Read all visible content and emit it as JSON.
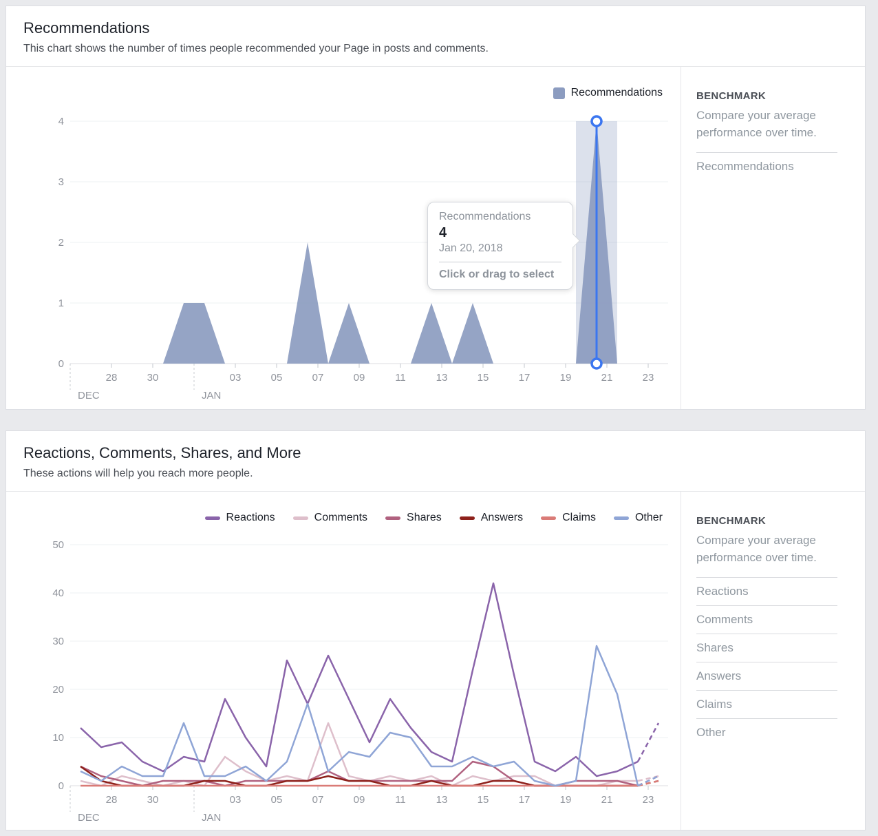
{
  "card1": {
    "title": "Recommendations",
    "subtitle": "This chart shows the number of times people recommended your Page in posts and comments.",
    "legend": [
      {
        "label": "Recommendations",
        "color": "#8c9cc0"
      }
    ],
    "benchmark": {
      "heading": "BENCHMARK",
      "description": "Compare your average performance over time.",
      "items": [
        "Recommendations"
      ]
    },
    "tooltip": {
      "series": "Recommendations",
      "value": "4",
      "date": "Jan 20, 2018",
      "hint": "Click or drag to select"
    },
    "chart_data": {
      "type": "area",
      "series_name": "Recommendations",
      "color": "#8c9cc0",
      "dates": [
        "Dec 26",
        "Dec 27",
        "Dec 28",
        "Dec 29",
        "Dec 30",
        "Dec 31",
        "Jan 1",
        "Jan 2",
        "Jan 3",
        "Jan 4",
        "Jan 5",
        "Jan 6",
        "Jan 7",
        "Jan 8",
        "Jan 9",
        "Jan 10",
        "Jan 11",
        "Jan 12",
        "Jan 13",
        "Jan 14",
        "Jan 15",
        "Jan 16",
        "Jan 17",
        "Jan 18",
        "Jan 19",
        "Jan 20",
        "Jan 21",
        "Jan 22",
        "Jan 23"
      ],
      "values": [
        0,
        0,
        0,
        0,
        0,
        1,
        1,
        0,
        0,
        0,
        0,
        2,
        0,
        1,
        0,
        0,
        0,
        1,
        0,
        1,
        0,
        0,
        0,
        0,
        0,
        4,
        0,
        0,
        0
      ],
      "ylim": [
        0,
        4
      ],
      "yticks": [
        0,
        1,
        2,
        3,
        4
      ],
      "x_tick_labels": [
        "28",
        "30",
        "",
        "03",
        "05",
        "07",
        "09",
        "11",
        "13",
        "15",
        "17",
        "19",
        "21",
        "23"
      ],
      "month_labels": [
        "DEC",
        "JAN"
      ],
      "selected": {
        "index": 25,
        "value": 4,
        "date": "Jan 20, 2018",
        "highlight_color": "#3b76f0"
      },
      "grid": true,
      "legend_position": "top-right"
    }
  },
  "card2": {
    "title": "Reactions, Comments, Shares, and More",
    "subtitle": "These actions will help you reach more people.",
    "benchmark": {
      "heading": "BENCHMARK",
      "description": "Compare your average performance over time.",
      "items": [
        "Reactions",
        "Comments",
        "Shares",
        "Answers",
        "Claims",
        "Other"
      ]
    },
    "chart_data": {
      "type": "line",
      "dates": [
        "Dec 26",
        "Dec 27",
        "Dec 28",
        "Dec 29",
        "Dec 30",
        "Dec 31",
        "Jan 1",
        "Jan 2",
        "Jan 3",
        "Jan 4",
        "Jan 5",
        "Jan 6",
        "Jan 7",
        "Jan 8",
        "Jan 9",
        "Jan 10",
        "Jan 11",
        "Jan 12",
        "Jan 13",
        "Jan 14",
        "Jan 15",
        "Jan 16",
        "Jan 17",
        "Jan 18",
        "Jan 19",
        "Jan 20",
        "Jan 21",
        "Jan 22",
        "Jan 23"
      ],
      "series": [
        {
          "name": "Reactions",
          "color": "#8a64aa",
          "dashed_end": true,
          "values": [
            12,
            8,
            9,
            5,
            3,
            6,
            5,
            18,
            10,
            4,
            26,
            17,
            27,
            18,
            9,
            18,
            12,
            7,
            5,
            24,
            42,
            23,
            5,
            3,
            6,
            2,
            3,
            5,
            13
          ]
        },
        {
          "name": "Comments",
          "color": "#debfcb",
          "dashed_end": true,
          "values": [
            1,
            0,
            2,
            1,
            0,
            1,
            0,
            6,
            3,
            1,
            2,
            1,
            13,
            2,
            1,
            2,
            1,
            2,
            0,
            2,
            1,
            2,
            2,
            0,
            0,
            0,
            1,
            1,
            2
          ]
        },
        {
          "name": "Shares",
          "color": "#b0617f",
          "dashed_end": true,
          "values": [
            4,
            2,
            1,
            0,
            1,
            1,
            1,
            0,
            1,
            1,
            1,
            1,
            3,
            1,
            1,
            1,
            1,
            1,
            1,
            5,
            4,
            1,
            0,
            0,
            1,
            1,
            1,
            0,
            2
          ]
        },
        {
          "name": "Answers",
          "color": "#8e211b",
          "dashed_end": true,
          "values": [
            4,
            1,
            0,
            0,
            0,
            0,
            1,
            1,
            0,
            0,
            1,
            1,
            2,
            1,
            1,
            0,
            0,
            1,
            0,
            0,
            1,
            1,
            0,
            0,
            0,
            0,
            0,
            0,
            1
          ]
        },
        {
          "name": "Claims",
          "color": "#da7b77",
          "dashed_end": true,
          "values": [
            0,
            0,
            0,
            0,
            0,
            0,
            0,
            0,
            0,
            0,
            0,
            0,
            0,
            0,
            0,
            0,
            0,
            0,
            0,
            0,
            0,
            0,
            0,
            0,
            0,
            0,
            0,
            0,
            1
          ]
        },
        {
          "name": "Other",
          "color": "#8fa5d6",
          "dashed_end": true,
          "values": [
            3,
            1,
            4,
            2,
            2,
            13,
            2,
            2,
            4,
            1,
            5,
            17,
            3,
            7,
            6,
            11,
            10,
            4,
            4,
            6,
            4,
            5,
            1,
            0,
            1,
            29,
            19,
            0,
            2
          ]
        }
      ],
      "ylim": [
        0,
        50
      ],
      "yticks": [
        0,
        10,
        20,
        30,
        40,
        50
      ],
      "x_tick_labels": [
        "28",
        "30",
        "",
        "03",
        "05",
        "07",
        "09",
        "11",
        "13",
        "15",
        "17",
        "19",
        "21",
        "23"
      ],
      "month_labels": [
        "DEC",
        "JAN"
      ],
      "grid": true,
      "legend_position": "top-right"
    }
  }
}
